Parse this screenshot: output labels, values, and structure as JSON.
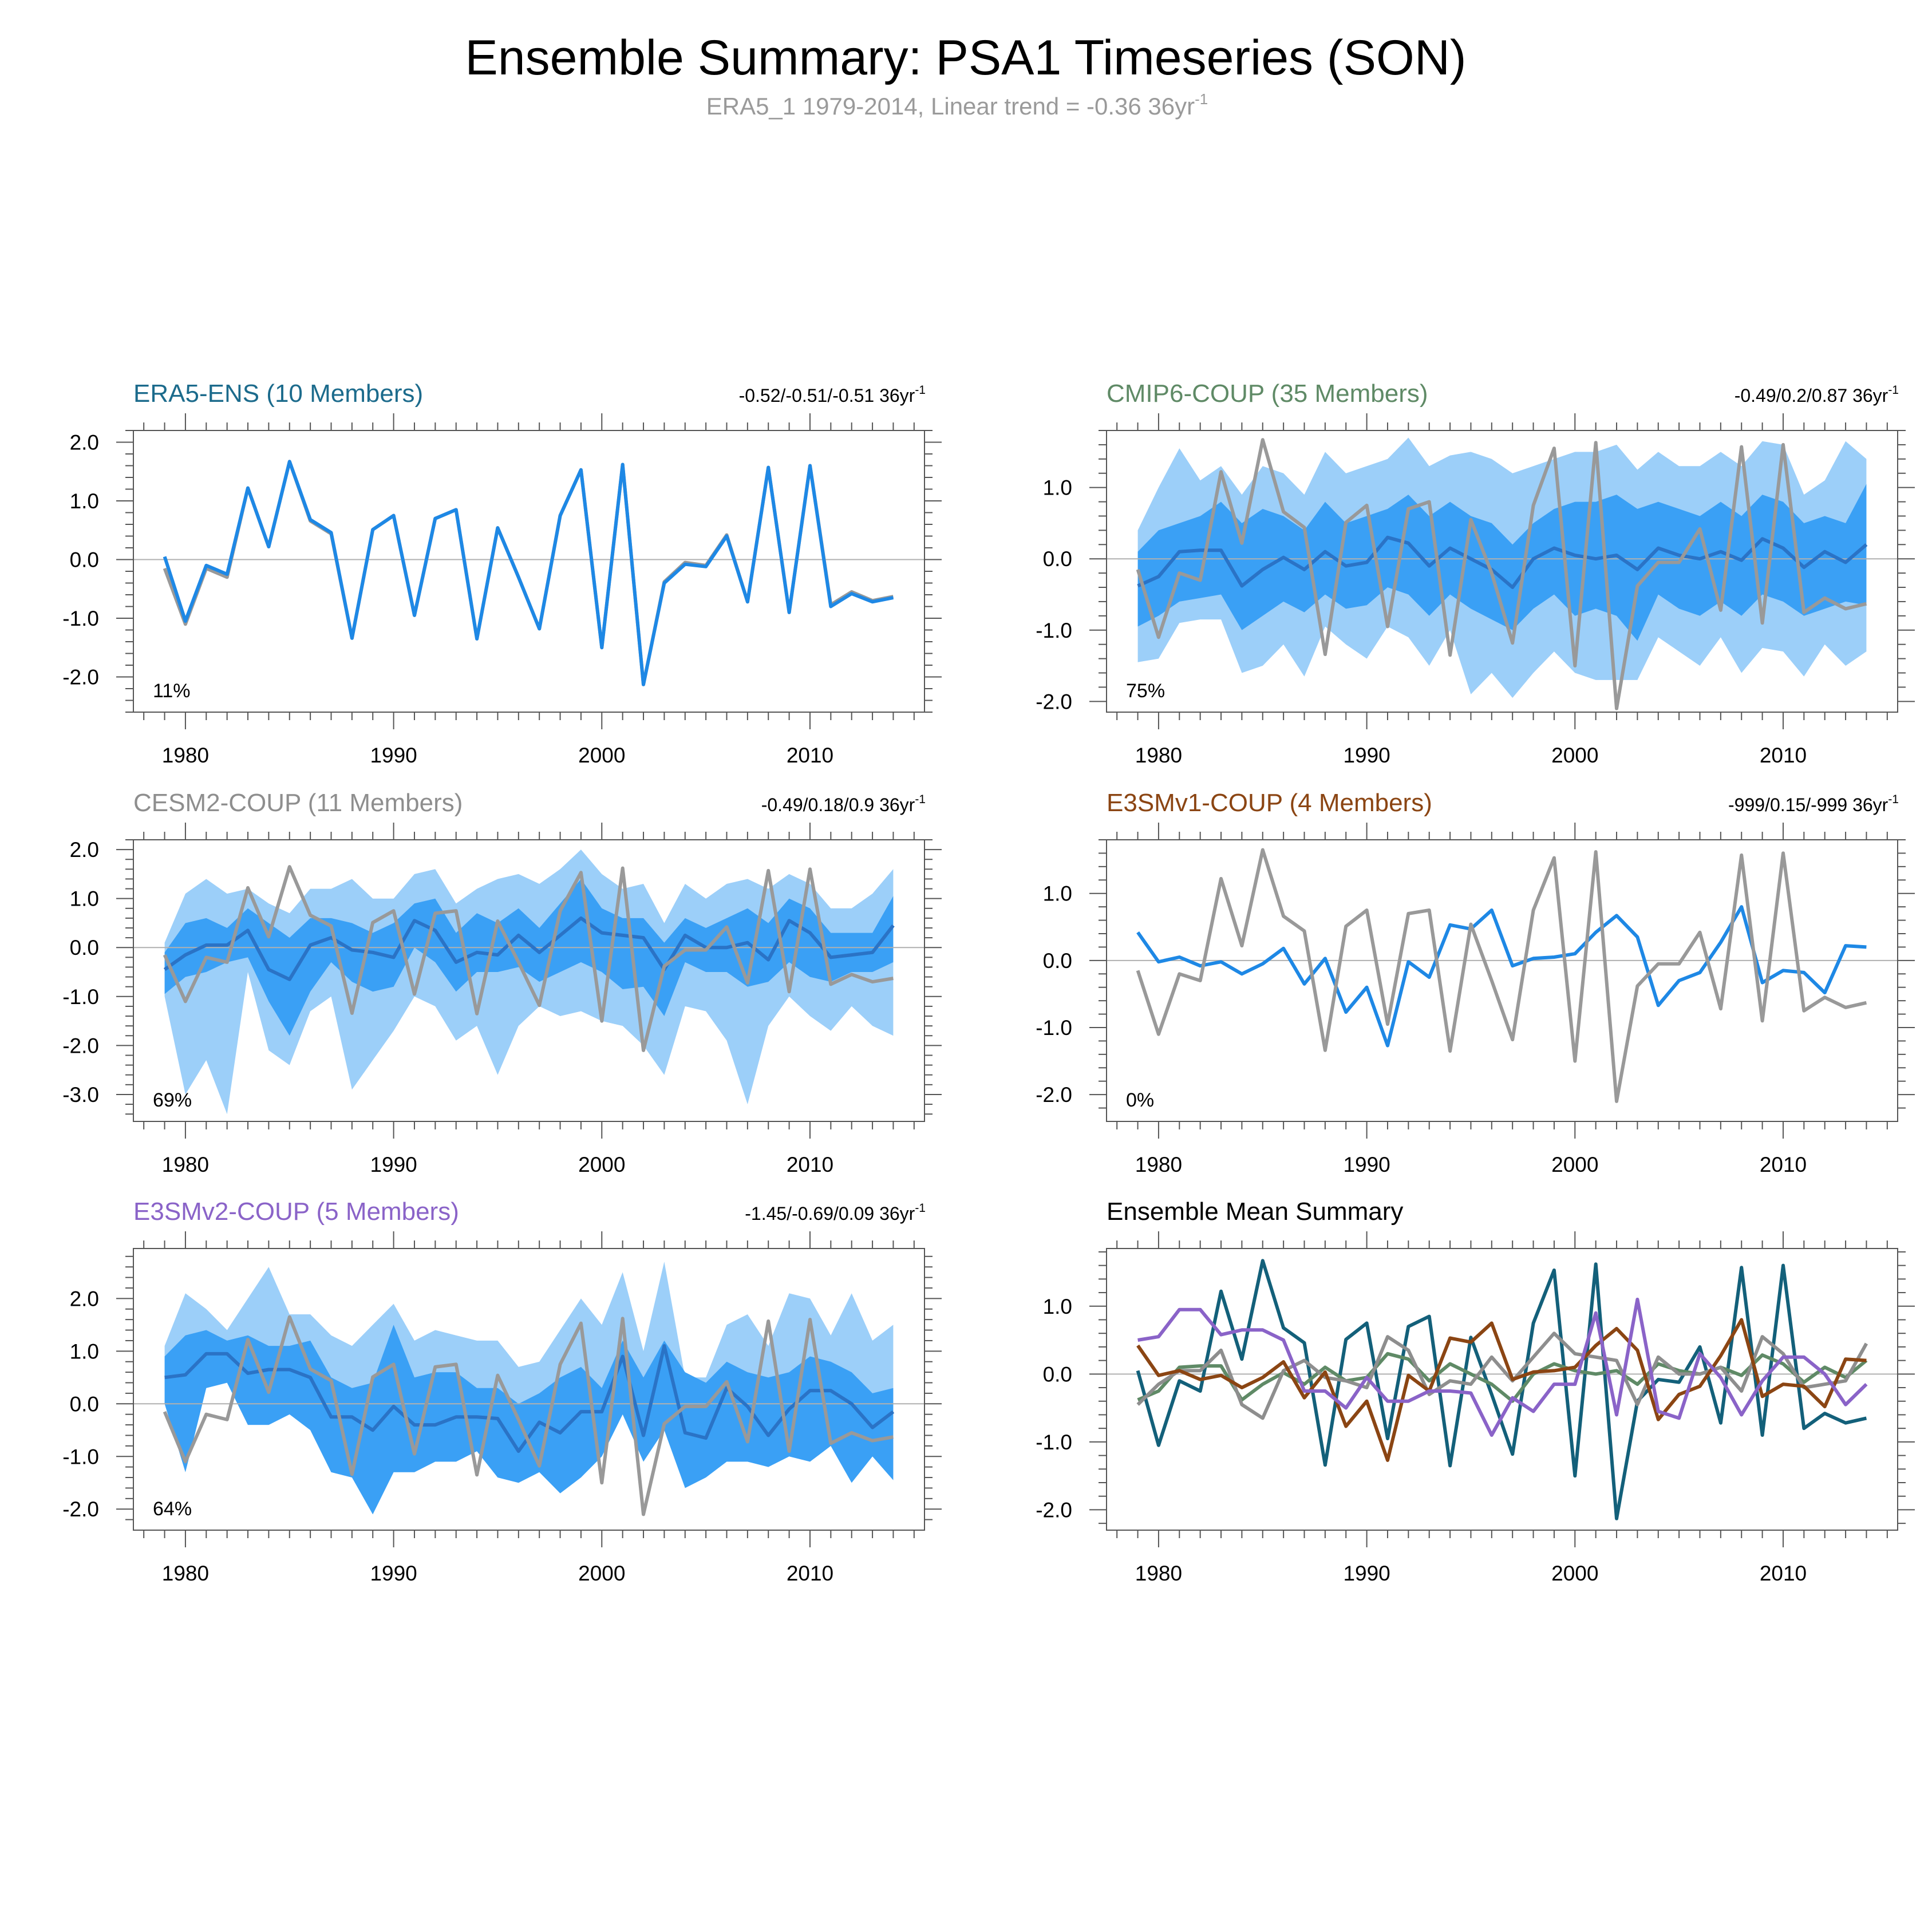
{
  "header": {
    "title": "Ensemble Summary: PSA1 Timeseries (SON)",
    "subtitle": "ERA5_1 1979-2014, Linear trend = -0.36 36yr",
    "subtitle_sup": "-1"
  },
  "colors": {
    "obs": "#999999",
    "mean": "#1e88e5",
    "band_outer": "#9ccff9",
    "band_inner": "#3aa0f5",
    "axis": "#555555",
    "zero_line": "#b0b0b0"
  },
  "chart_data": [
    {
      "type": "line",
      "title": "ERA5-ENS (10 Members)",
      "title_color": "#1c6b8c",
      "trend": "-0.52/-0.51/-0.51 36yr",
      "trend_sup": "-1",
      "pct": "11%",
      "ylim": [
        -2.6,
        2.2
      ],
      "yticks": [
        2.0,
        1.0,
        0.0,
        -1.0,
        -2.0
      ],
      "ytick_labels": [
        "2.0",
        "1.0",
        "0.0",
        "-1.0",
        "-2.0"
      ],
      "xticks": [
        1980,
        1990,
        2000,
        2010
      ],
      "xlim": [
        1977.5,
        2015.5
      ],
      "x_start": 1979,
      "obs": [
        -0.15,
        -1.1,
        -0.15,
        -0.3,
        1.22,
        0.22,
        1.67,
        0.66,
        0.44,
        -1.34,
        0.51,
        0.75,
        -0.95,
        0.7,
        0.85,
        -1.35,
        0.54,
        -0.3,
        -1.18,
        0.75,
        1.53,
        -1.5,
        1.62,
        -2.13,
        -0.38,
        -0.05,
        -0.1,
        0.42,
        -0.72,
        1.57,
        -0.9,
        1.6,
        -0.77,
        -0.55,
        -0.7,
        -0.63
      ],
      "mean": [
        0.05,
        -1.05,
        -0.1,
        -0.25,
        1.22,
        0.22,
        1.67,
        0.68,
        0.46,
        -1.34,
        0.51,
        0.75,
        -0.95,
        0.7,
        0.85,
        -1.35,
        0.54,
        -0.3,
        -1.18,
        0.75,
        1.53,
        -1.5,
        1.62,
        -2.13,
        -0.4,
        -0.08,
        -0.12,
        0.4,
        -0.72,
        1.57,
        -0.9,
        1.6,
        -0.8,
        -0.58,
        -0.72,
        -0.65
      ]
    },
    {
      "type": "line",
      "title": "CMIP6-COUP (35 Members)",
      "title_color": "#5f8a66",
      "trend": "-0.49/0.2/0.87 36yr",
      "trend_sup": "-1",
      "pct": "75%",
      "ylim": [
        -2.15,
        1.8
      ],
      "yticks": [
        1.0,
        0.0,
        -1.0,
        -2.0
      ],
      "ytick_labels": [
        "1.0",
        "0.0",
        "-1.0",
        "-2.0"
      ],
      "xticks": [
        1980,
        1990,
        2000,
        2010
      ],
      "xlim": [
        1977.5,
        2015.5
      ],
      "x_start": 1979,
      "obs": [
        -0.15,
        -1.1,
        -0.2,
        -0.3,
        1.22,
        0.22,
        1.67,
        0.66,
        0.44,
        -1.34,
        0.51,
        0.75,
        -0.95,
        0.7,
        0.8,
        -1.35,
        0.55,
        -0.2,
        -1.18,
        0.75,
        1.55,
        -1.5,
        1.63,
        -2.1,
        -0.38,
        -0.05,
        -0.05,
        0.42,
        -0.72,
        1.57,
        -0.9,
        1.6,
        -0.75,
        -0.55,
        -0.7,
        -0.63
      ],
      "mean": [
        -0.38,
        -0.25,
        0.1,
        0.12,
        0.12,
        -0.38,
        -0.15,
        0.02,
        -0.15,
        0.1,
        -0.1,
        -0.05,
        0.3,
        0.22,
        -0.1,
        0.15,
        0.0,
        -0.15,
        -0.4,
        0.0,
        0.15,
        0.05,
        0.0,
        0.05,
        -0.15,
        0.15,
        0.05,
        0.0,
        0.1,
        -0.02,
        0.28,
        0.15,
        -0.12,
        0.1,
        -0.05,
        0.2
      ],
      "inner_upper": [
        0.1,
        0.4,
        0.5,
        0.6,
        0.8,
        0.5,
        0.7,
        0.6,
        0.4,
        0.8,
        0.5,
        0.6,
        0.7,
        0.9,
        0.6,
        0.8,
        0.6,
        0.5,
        0.2,
        0.5,
        0.7,
        0.8,
        0.8,
        0.9,
        0.7,
        0.8,
        0.7,
        0.6,
        0.8,
        0.6,
        0.9,
        0.8,
        0.5,
        0.6,
        0.5,
        1.05
      ],
      "inner_lower": [
        -0.95,
        -0.8,
        -0.6,
        -0.55,
        -0.5,
        -1.0,
        -0.8,
        -0.6,
        -0.75,
        -0.5,
        -0.7,
        -0.65,
        -0.4,
        -0.5,
        -0.8,
        -0.5,
        -0.7,
        -0.85,
        -1.0,
        -0.7,
        -0.5,
        -0.8,
        -0.7,
        -0.8,
        -1.15,
        -0.5,
        -0.7,
        -0.8,
        -0.6,
        -0.8,
        -0.5,
        -0.6,
        -0.8,
        -0.7,
        -0.6,
        -0.65
      ],
      "outer_upper": [
        0.4,
        1.0,
        1.55,
        1.1,
        1.3,
        0.9,
        1.3,
        1.2,
        0.9,
        1.5,
        1.2,
        1.3,
        1.4,
        1.7,
        1.3,
        1.45,
        1.5,
        1.4,
        1.2,
        1.3,
        1.4,
        1.5,
        1.5,
        1.6,
        1.25,
        1.5,
        1.3,
        1.3,
        1.5,
        1.3,
        1.65,
        1.6,
        0.9,
        1.1,
        1.65,
        1.4
      ],
      "outer_lower": [
        -1.45,
        -1.4,
        -0.9,
        -0.85,
        -0.85,
        -1.6,
        -1.5,
        -1.2,
        -1.65,
        -0.95,
        -1.2,
        -1.4,
        -0.95,
        -1.1,
        -1.5,
        -1.0,
        -1.9,
        -1.6,
        -1.95,
        -1.6,
        -1.3,
        -1.6,
        -1.7,
        -1.7,
        -1.7,
        -1.1,
        -1.3,
        -1.5,
        -1.1,
        -1.6,
        -1.25,
        -1.3,
        -1.65,
        -1.2,
        -1.5,
        -1.3
      ]
    },
    {
      "type": "line",
      "title": "CESM2-COUP (11 Members)",
      "title_color": "#8e8e8e",
      "trend": "-0.49/0.18/0.9 36yr",
      "trend_sup": "-1",
      "pct": "69%",
      "ylim": [
        -3.55,
        2.2
      ],
      "yticks": [
        2.0,
        1.0,
        0.0,
        -1.0,
        -2.0,
        -3.0
      ],
      "ytick_labels": [
        "2.0",
        "1.0",
        "0.0",
        "-1.0",
        "-2.0",
        "-3.0"
      ],
      "xticks": [
        1980,
        1990,
        2000,
        2010
      ],
      "xlim": [
        1977.5,
        2015.5
      ],
      "x_start": 1979,
      "obs": [
        -0.15,
        -1.1,
        -0.2,
        -0.3,
        1.22,
        0.22,
        1.65,
        0.66,
        0.44,
        -1.34,
        0.51,
        0.75,
        -0.95,
        0.7,
        0.75,
        -1.35,
        0.54,
        -0.3,
        -1.18,
        0.75,
        1.53,
        -1.5,
        1.62,
        -2.1,
        -0.38,
        -0.05,
        -0.05,
        0.42,
        -0.72,
        1.57,
        -0.9,
        1.6,
        -0.75,
        -0.55,
        -0.7,
        -0.63
      ],
      "mean": [
        -0.45,
        -0.15,
        0.05,
        0.05,
        0.35,
        -0.45,
        -0.65,
        0.05,
        0.2,
        -0.05,
        -0.1,
        -0.2,
        0.55,
        0.35,
        -0.3,
        -0.1,
        -0.15,
        0.25,
        -0.1,
        0.25,
        0.6,
        0.3,
        0.25,
        0.2,
        -0.45,
        0.25,
        0.0,
        0.0,
        0.1,
        -0.25,
        0.55,
        0.3,
        -0.2,
        -0.15,
        -0.1,
        0.45
      ],
      "inner_upper": [
        -0.1,
        0.5,
        0.6,
        0.4,
        0.8,
        0.5,
        0.2,
        0.6,
        0.6,
        0.5,
        0.3,
        0.5,
        0.9,
        1.0,
        0.3,
        0.7,
        0.5,
        0.8,
        0.4,
        0.9,
        1.4,
        0.8,
        0.6,
        0.6,
        0.1,
        0.6,
        0.4,
        0.6,
        0.8,
        0.5,
        1.0,
        0.8,
        0.3,
        0.3,
        0.3,
        1.05
      ],
      "inner_lower": [
        -0.95,
        -0.6,
        -0.5,
        -0.3,
        -0.2,
        -1.1,
        -1.8,
        -0.9,
        -0.3,
        -0.7,
        -0.9,
        -0.8,
        0.0,
        -0.3,
        -0.9,
        -0.5,
        -0.5,
        -0.4,
        -0.7,
        -0.5,
        -0.3,
        -0.5,
        -0.85,
        -0.8,
        -1.4,
        -0.3,
        -0.5,
        -0.5,
        -0.8,
        -0.7,
        -0.3,
        -0.6,
        -0.7,
        -0.5,
        -0.5,
        -0.3
      ],
      "outer_upper": [
        0.1,
        1.1,
        1.4,
        1.1,
        1.2,
        0.9,
        0.7,
        1.2,
        1.2,
        1.4,
        1.0,
        1.0,
        1.5,
        1.6,
        0.9,
        1.2,
        1.4,
        1.5,
        1.3,
        1.6,
        2.0,
        1.5,
        1.2,
        1.3,
        0.5,
        1.3,
        1.0,
        1.3,
        1.4,
        1.2,
        1.5,
        1.3,
        0.8,
        0.8,
        1.1,
        1.6
      ],
      "outer_lower": [
        -1.0,
        -3.0,
        -2.3,
        -3.4,
        -0.5,
        -2.1,
        -2.4,
        -1.3,
        -1.0,
        -2.9,
        -2.3,
        -1.7,
        -1.0,
        -1.2,
        -1.9,
        -1.6,
        -2.6,
        -1.6,
        -1.2,
        -1.4,
        -1.3,
        -1.5,
        -1.6,
        -2.0,
        -2.6,
        -1.2,
        -1.3,
        -1.9,
        -3.2,
        -1.6,
        -1.0,
        -1.4,
        -1.7,
        -1.2,
        -1.6,
        -1.8
      ]
    },
    {
      "type": "line",
      "title": "E3SMv1-COUP (4 Members)",
      "title_color": "#8b4513",
      "trend": "-999/0.15/-999 36yr",
      "trend_sup": "-1",
      "pct": "0%",
      "ylim": [
        -2.4,
        1.8
      ],
      "yticks": [
        1.0,
        0.0,
        -1.0,
        -2.0
      ],
      "ytick_labels": [
        "1.0",
        "0.0",
        "-1.0",
        "-2.0"
      ],
      "xticks": [
        1980,
        1990,
        2000,
        2010
      ],
      "xlim": [
        1977.5,
        2015.5
      ],
      "x_start": 1979,
      "obs": [
        -0.15,
        -1.1,
        -0.2,
        -0.3,
        1.22,
        0.22,
        1.65,
        0.66,
        0.44,
        -1.34,
        0.51,
        0.75,
        -0.95,
        0.7,
        0.75,
        -1.35,
        0.54,
        -0.3,
        -1.18,
        0.75,
        1.53,
        -1.5,
        1.62,
        -2.1,
        -0.38,
        -0.05,
        -0.05,
        0.42,
        -0.72,
        1.57,
        -0.9,
        1.6,
        -0.75,
        -0.55,
        -0.7,
        -0.63
      ],
      "mean": [
        0.42,
        -0.02,
        0.05,
        -0.08,
        -0.02,
        -0.2,
        -0.05,
        0.18,
        -0.35,
        0.03,
        -0.77,
        -0.4,
        -1.27,
        -0.02,
        -0.25,
        0.53,
        0.47,
        0.75,
        -0.08,
        0.03,
        0.05,
        0.1,
        0.42,
        0.67,
        0.35,
        -0.67,
        -0.3,
        -0.18,
        0.27,
        0.8,
        -0.33,
        -0.15,
        -0.18,
        -0.48,
        0.22,
        0.2
      ]
    },
    {
      "type": "line",
      "title": "E3SMv2-COUP (5 Members)",
      "title_color": "#8a63c8",
      "trend": "-1.45/-0.69/0.09 36yr",
      "trend_sup": "-1",
      "pct": "64%",
      "ylim": [
        -2.4,
        2.95
      ],
      "yticks": [
        2.0,
        1.0,
        0.0,
        -1.0,
        -2.0
      ],
      "ytick_labels": [
        "2.0",
        "1.0",
        "0.0",
        "-1.0",
        "-2.0"
      ],
      "xticks": [
        1980,
        1990,
        2000,
        2010
      ],
      "xlim": [
        1977.5,
        2015.5
      ],
      "x_start": 1979,
      "obs": [
        -0.15,
        -1.1,
        -0.2,
        -0.3,
        1.22,
        0.22,
        1.65,
        0.66,
        0.44,
        -1.34,
        0.51,
        0.75,
        -0.95,
        0.7,
        0.75,
        -1.35,
        0.54,
        -0.3,
        -1.18,
        0.75,
        1.53,
        -1.5,
        1.62,
        -2.1,
        -0.38,
        -0.05,
        -0.05,
        0.42,
        -0.72,
        1.57,
        -0.9,
        1.6,
        -0.75,
        -0.55,
        -0.7,
        -0.63
      ],
      "mean": [
        0.5,
        0.55,
        0.95,
        0.95,
        0.58,
        0.65,
        0.65,
        0.5,
        -0.25,
        -0.25,
        -0.5,
        -0.05,
        -0.4,
        -0.4,
        -0.25,
        -0.25,
        -0.28,
        -0.9,
        -0.35,
        -0.55,
        -0.15,
        -0.15,
        0.9,
        -0.6,
        1.1,
        -0.55,
        -0.65,
        0.3,
        -0.05,
        -0.6,
        -0.1,
        0.25,
        0.25,
        0.0,
        -0.45,
        -0.15
      ],
      "inner_upper": [
        0.9,
        1.3,
        1.4,
        1.2,
        1.3,
        1.1,
        1.1,
        1.2,
        0.5,
        0.3,
        0.4,
        1.5,
        0.5,
        0.6,
        0.6,
        0.3,
        0.3,
        0.0,
        0.2,
        0.5,
        0.7,
        0.3,
        1.2,
        0.5,
        1.2,
        0.6,
        0.4,
        0.8,
        0.6,
        0.5,
        0.6,
        0.9,
        0.8,
        0.6,
        0.2,
        0.3
      ],
      "inner_lower": [
        0.0,
        -1.3,
        0.3,
        0.4,
        -0.4,
        -0.4,
        -0.2,
        -0.5,
        -1.3,
        -1.4,
        -2.1,
        -1.3,
        -1.3,
        -1.1,
        -1.1,
        -0.9,
        -1.4,
        -1.5,
        -1.3,
        -1.7,
        -1.4,
        -1.0,
        -0.2,
        -1.1,
        -0.5,
        -1.6,
        -1.4,
        -1.1,
        -1.1,
        -1.2,
        -1.0,
        -1.1,
        -0.8,
        -1.5,
        -1.0,
        -1.45
      ],
      "outer_upper": [
        1.1,
        2.1,
        1.8,
        1.4,
        2.0,
        2.6,
        1.7,
        1.7,
        1.3,
        1.1,
        1.5,
        1.9,
        1.2,
        1.4,
        1.3,
        1.2,
        1.2,
        0.7,
        0.8,
        1.4,
        2.0,
        1.5,
        2.5,
        1.0,
        2.7,
        0.5,
        0.5,
        1.5,
        1.7,
        1.1,
        2.1,
        2.0,
        1.3,
        2.1,
        1.2,
        1.5
      ],
      "outer_lower": [
        0.0,
        -1.3,
        0.3,
        0.4,
        -0.4,
        -0.4,
        -0.2,
        -0.5,
        -1.3,
        -1.4,
        -2.1,
        -1.3,
        -1.3,
        -1.1,
        -1.1,
        -0.9,
        -1.4,
        -1.5,
        -1.3,
        -1.7,
        -1.4,
        -1.0,
        -0.2,
        -1.1,
        -0.5,
        -1.6,
        -1.4,
        -1.1,
        -1.1,
        -1.2,
        -1.0,
        -1.1,
        -0.8,
        -1.5,
        -1.0,
        -1.45
      ]
    },
    {
      "type": "line",
      "title": "Ensemble Mean Summary",
      "title_color": "#000000",
      "trend": "",
      "trend_sup": "",
      "pct": "",
      "ylim": [
        -2.3,
        1.85
      ],
      "yticks": [
        1.0,
        0.0,
        -1.0,
        -2.0
      ],
      "ytick_labels": [
        "1.0",
        "0.0",
        "-1.0",
        "-2.0"
      ],
      "xticks": [
        1980,
        1990,
        2000,
        2010
      ],
      "xlim": [
        1977.5,
        2015.5
      ],
      "x_start": 1979,
      "series": [
        {
          "name": "ERA5-ENS",
          "color": "#13607a",
          "values": [
            0.05,
            -1.05,
            -0.1,
            -0.25,
            1.22,
            0.22,
            1.67,
            0.68,
            0.46,
            -1.34,
            0.51,
            0.75,
            -0.95,
            0.7,
            0.85,
            -1.35,
            0.54,
            -0.3,
            -1.18,
            0.75,
            1.53,
            -1.5,
            1.62,
            -2.13,
            -0.4,
            -0.08,
            -0.12,
            0.4,
            -0.72,
            1.57,
            -0.9,
            1.6,
            -0.8,
            -0.58,
            -0.72,
            -0.65
          ]
        },
        {
          "name": "CMIP6-COUP",
          "color": "#5f8a66",
          "values": [
            -0.38,
            -0.25,
            0.1,
            0.12,
            0.12,
            -0.38,
            -0.15,
            0.02,
            -0.15,
            0.1,
            -0.1,
            -0.05,
            0.3,
            0.22,
            -0.1,
            0.15,
            0.0,
            -0.15,
            -0.4,
            0.0,
            0.15,
            0.05,
            0.0,
            0.05,
            -0.15,
            0.15,
            0.05,
            0.0,
            0.1,
            -0.02,
            0.28,
            0.15,
            -0.12,
            0.1,
            -0.05,
            0.2
          ]
        },
        {
          "name": "CESM2-COUP",
          "color": "#8e8e8e",
          "values": [
            -0.45,
            -0.15,
            0.05,
            0.05,
            0.35,
            -0.45,
            -0.65,
            0.05,
            0.2,
            -0.05,
            -0.1,
            -0.2,
            0.55,
            0.35,
            -0.3,
            -0.1,
            -0.15,
            0.25,
            -0.1,
            0.25,
            0.6,
            0.3,
            0.25,
            0.2,
            -0.45,
            0.25,
            0.0,
            0.0,
            0.1,
            -0.25,
            0.55,
            0.3,
            -0.2,
            -0.15,
            -0.1,
            0.45
          ]
        },
        {
          "name": "E3SMv1-COUP",
          "color": "#8b4513",
          "values": [
            0.42,
            -0.02,
            0.05,
            -0.08,
            -0.02,
            -0.2,
            -0.05,
            0.18,
            -0.35,
            0.03,
            -0.77,
            -0.4,
            -1.27,
            -0.02,
            -0.25,
            0.53,
            0.47,
            0.75,
            -0.08,
            0.03,
            0.05,
            0.1,
            0.42,
            0.67,
            0.35,
            -0.67,
            -0.3,
            -0.18,
            0.27,
            0.8,
            -0.33,
            -0.15,
            -0.18,
            -0.48,
            0.22,
            0.2
          ]
        },
        {
          "name": "E3SMv2-COUP",
          "color": "#8a63c8",
          "values": [
            0.5,
            0.55,
            0.95,
            0.95,
            0.58,
            0.65,
            0.65,
            0.5,
            -0.25,
            -0.25,
            -0.5,
            -0.05,
            -0.4,
            -0.4,
            -0.25,
            -0.25,
            -0.28,
            -0.9,
            -0.35,
            -0.55,
            -0.15,
            -0.15,
            0.9,
            -0.6,
            1.1,
            -0.55,
            -0.65,
            0.3,
            -0.05,
            -0.6,
            -0.1,
            0.25,
            0.25,
            0.0,
            -0.45,
            -0.15
          ]
        }
      ]
    }
  ]
}
